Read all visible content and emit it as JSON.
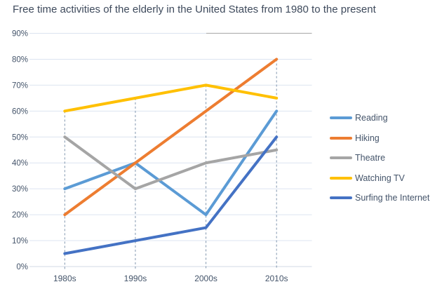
{
  "chart_data": {
    "type": "line",
    "title": "Free time activities of the elderly in the United States from 1980 to the present",
    "categories": [
      "1980s",
      "1990s",
      "2000s",
      "2010s"
    ],
    "series": [
      {
        "name": "Reading",
        "color": "#5B9BD5",
        "values": [
          30,
          40,
          20,
          60
        ]
      },
      {
        "name": "Hiking",
        "color": "#ED7D31",
        "values": [
          20,
          40,
          60,
          80
        ]
      },
      {
        "name": "Theatre",
        "color": "#A5A5A5",
        "values": [
          50,
          30,
          40,
          45
        ]
      },
      {
        "name": "Watching TV",
        "color": "#FFC000",
        "values": [
          60,
          65,
          70,
          65
        ]
      },
      {
        "name": "Surfing the Internet",
        "color": "#4472C4",
        "values": [
          5,
          10,
          15,
          50
        ]
      }
    ],
    "xlabel": "",
    "ylabel": "",
    "ylim": [
      0,
      90
    ],
    "ytick_step": 10,
    "ytick_labels": [
      "0%",
      "10%",
      "20%",
      "30%",
      "40%",
      "50%",
      "60%",
      "70%",
      "80%",
      "90%"
    ],
    "grid": true,
    "legend_position": "right",
    "drop_lines": true
  },
  "colors": {
    "title_text": "#3e4a5c",
    "axis_text": "#44546A",
    "gridline": "#dce4f0",
    "axis_line": "#d2dae6",
    "drop_line": "#8096ae",
    "top_right_border_segment": "#b2b2b2",
    "background": "#ffffff"
  }
}
